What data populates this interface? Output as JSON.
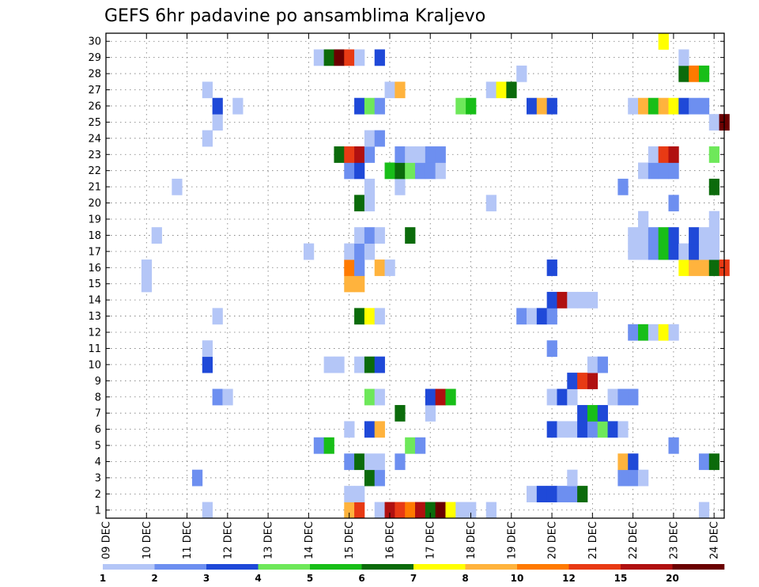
{
  "chart_data": {
    "type": "heatmap",
    "title": "GEFS 6hr padavine po ansamblima Kraljevo",
    "xlabel": "",
    "ylabel": "",
    "x_tick_labels": [
      "09 DEC",
      "10 DEC",
      "11 DEC",
      "12 DEC",
      "13 DEC",
      "14 DEC",
      "15 DEC",
      "16 DEC",
      "17 DEC",
      "18 DEC",
      "19 DEC",
      "20 DEC",
      "21 DEC",
      "22 DEC",
      "23 DEC",
      "24 DEC"
    ],
    "xlim": [
      0,
      61
    ],
    "x_unit": "6-hour step from 09 DEC 00Z",
    "y_tick_labels": [
      "1",
      "2",
      "3",
      "4",
      "5",
      "6",
      "7",
      "8",
      "9",
      "10",
      "11",
      "12",
      "13",
      "14",
      "15",
      "16",
      "17",
      "18",
      "19",
      "20",
      "21",
      "22",
      "23",
      "24",
      "25",
      "26",
      "27",
      "28",
      "29",
      "30"
    ],
    "ylim": [
      0.5,
      30.5
    ],
    "grid": true,
    "colorbar": {
      "labels": [
        "1",
        "2",
        "3",
        "4",
        "5",
        "6",
        "7",
        "8",
        "10",
        "12",
        "15",
        "20"
      ],
      "colors": [
        "#b4c6f7",
        "#6d8ff0",
        "#1f49d8",
        "#6ee85a",
        "#18be18",
        "#0b6b0b",
        "#ffff00",
        "#ffb33d",
        "#ff7a00",
        "#e83a14",
        "#b01010",
        "#6b0000"
      ]
    },
    "cells": [
      [
        10,
        1,
        1
      ],
      [
        24,
        1,
        8
      ],
      [
        25,
        1,
        10
      ],
      [
        27,
        1,
        1
      ],
      [
        28,
        1,
        11
      ],
      [
        29,
        1,
        10
      ],
      [
        30,
        1,
        9
      ],
      [
        31,
        1,
        11
      ],
      [
        32,
        1,
        6
      ],
      [
        33,
        1,
        12
      ],
      [
        34,
        1,
        7
      ],
      [
        35,
        1,
        1
      ],
      [
        36,
        1,
        1
      ],
      [
        38,
        1,
        1
      ],
      [
        59,
        1,
        1
      ],
      [
        24,
        2,
        1
      ],
      [
        25,
        2,
        1
      ],
      [
        42,
        2,
        1
      ],
      [
        43,
        2,
        3
      ],
      [
        44,
        2,
        3
      ],
      [
        45,
        2,
        2
      ],
      [
        46,
        2,
        2
      ],
      [
        47,
        2,
        6
      ],
      [
        9,
        3,
        2
      ],
      [
        26,
        3,
        6
      ],
      [
        27,
        3,
        2
      ],
      [
        46,
        3,
        1
      ],
      [
        51,
        3,
        2
      ],
      [
        52,
        3,
        2
      ],
      [
        53,
        3,
        1
      ],
      [
        24,
        4,
        2
      ],
      [
        25,
        4,
        6
      ],
      [
        26,
        4,
        1
      ],
      [
        27,
        4,
        1
      ],
      [
        29,
        4,
        2
      ],
      [
        51,
        4,
        8
      ],
      [
        52,
        4,
        3
      ],
      [
        59,
        4,
        2
      ],
      [
        60,
        4,
        6
      ],
      [
        21,
        5,
        2
      ],
      [
        22,
        5,
        5
      ],
      [
        30,
        5,
        4
      ],
      [
        31,
        5,
        2
      ],
      [
        56,
        5,
        2
      ],
      [
        24,
        6,
        1
      ],
      [
        26,
        6,
        3
      ],
      [
        27,
        6,
        8
      ],
      [
        44,
        6,
        3
      ],
      [
        45,
        6,
        1
      ],
      [
        46,
        6,
        1
      ],
      [
        47,
        6,
        3
      ],
      [
        48,
        6,
        2
      ],
      [
        49,
        6,
        4
      ],
      [
        50,
        6,
        3
      ],
      [
        51,
        6,
        1
      ],
      [
        29,
        7,
        6
      ],
      [
        32,
        7,
        1
      ],
      [
        47,
        7,
        3
      ],
      [
        48,
        7,
        5
      ],
      [
        49,
        7,
        3
      ],
      [
        11,
        8,
        2
      ],
      [
        12,
        8,
        1
      ],
      [
        26,
        8,
        4
      ],
      [
        27,
        8,
        1
      ],
      [
        32,
        8,
        3
      ],
      [
        33,
        8,
        11
      ],
      [
        34,
        8,
        5
      ],
      [
        44,
        8,
        1
      ],
      [
        45,
        8,
        3
      ],
      [
        46,
        8,
        1
      ],
      [
        50,
        8,
        1
      ],
      [
        51,
        8,
        2
      ],
      [
        52,
        8,
        2
      ],
      [
        46,
        9,
        3
      ],
      [
        47,
        9,
        10
      ],
      [
        48,
        9,
        11
      ],
      [
        10,
        10,
        3
      ],
      [
        22,
        10,
        1
      ],
      [
        23,
        10,
        1
      ],
      [
        25,
        10,
        1
      ],
      [
        26,
        10,
        6
      ],
      [
        27,
        10,
        3
      ],
      [
        48,
        10,
        1
      ],
      [
        49,
        10,
        2
      ],
      [
        10,
        11,
        1
      ],
      [
        44,
        11,
        2
      ],
      [
        52,
        12,
        2
      ],
      [
        53,
        12,
        5
      ],
      [
        54,
        12,
        1
      ],
      [
        55,
        12,
        7
      ],
      [
        56,
        12,
        1
      ],
      [
        11,
        13,
        1
      ],
      [
        25,
        13,
        6
      ],
      [
        26,
        13,
        7
      ],
      [
        27,
        13,
        1
      ],
      [
        41,
        13,
        2
      ],
      [
        42,
        13,
        1
      ],
      [
        43,
        13,
        3
      ],
      [
        44,
        13,
        2
      ],
      [
        44,
        14,
        3
      ],
      [
        45,
        14,
        11
      ],
      [
        46,
        14,
        1
      ],
      [
        47,
        14,
        1
      ],
      [
        48,
        14,
        1
      ],
      [
        4,
        15,
        1
      ],
      [
        24,
        15,
        8
      ],
      [
        25,
        15,
        8
      ],
      [
        4,
        16,
        1
      ],
      [
        24,
        16,
        9
      ],
      [
        25,
        16,
        2
      ],
      [
        27,
        16,
        8
      ],
      [
        28,
        16,
        1
      ],
      [
        44,
        16,
        3
      ],
      [
        57,
        16,
        7
      ],
      [
        58,
        16,
        8
      ],
      [
        59,
        16,
        8
      ],
      [
        60,
        16,
        6
      ],
      [
        61,
        16,
        10
      ],
      [
        20,
        17,
        1
      ],
      [
        24,
        17,
        1
      ],
      [
        25,
        17,
        2
      ],
      [
        26,
        17,
        1
      ],
      [
        52,
        17,
        1
      ],
      [
        53,
        17,
        1
      ],
      [
        54,
        17,
        2
      ],
      [
        55,
        17,
        5
      ],
      [
        56,
        17,
        3
      ],
      [
        57,
        17,
        1
      ],
      [
        58,
        17,
        3
      ],
      [
        59,
        17,
        1
      ],
      [
        60,
        17,
        1
      ],
      [
        5,
        18,
        1
      ],
      [
        25,
        18,
        1
      ],
      [
        26,
        18,
        2
      ],
      [
        27,
        18,
        1
      ],
      [
        30,
        18,
        6
      ],
      [
        52,
        18,
        1
      ],
      [
        53,
        18,
        1
      ],
      [
        54,
        18,
        2
      ],
      [
        55,
        18,
        5
      ],
      [
        56,
        18,
        3
      ],
      [
        58,
        18,
        3
      ],
      [
        59,
        18,
        1
      ],
      [
        60,
        18,
        1
      ],
      [
        53,
        19,
        1
      ],
      [
        60,
        19,
        1
      ],
      [
        25,
        20,
        6
      ],
      [
        26,
        20,
        1
      ],
      [
        38,
        20,
        1
      ],
      [
        56,
        20,
        2
      ],
      [
        7,
        21,
        1
      ],
      [
        26,
        21,
        1
      ],
      [
        29,
        21,
        1
      ],
      [
        51,
        21,
        2
      ],
      [
        60,
        21,
        6
      ],
      [
        24,
        22,
        2
      ],
      [
        25,
        22,
        3
      ],
      [
        28,
        22,
        5
      ],
      [
        29,
        22,
        6
      ],
      [
        30,
        22,
        4
      ],
      [
        31,
        22,
        2
      ],
      [
        32,
        22,
        2
      ],
      [
        33,
        22,
        1
      ],
      [
        53,
        22,
        1
      ],
      [
        54,
        22,
        2
      ],
      [
        55,
        22,
        2
      ],
      [
        56,
        22,
        2
      ],
      [
        23,
        23,
        6
      ],
      [
        24,
        23,
        10
      ],
      [
        25,
        23,
        11
      ],
      [
        26,
        23,
        2
      ],
      [
        29,
        23,
        2
      ],
      [
        30,
        23,
        1
      ],
      [
        31,
        23,
        1
      ],
      [
        32,
        23,
        2
      ],
      [
        33,
        23,
        2
      ],
      [
        54,
        23,
        1
      ],
      [
        55,
        23,
        10
      ],
      [
        56,
        23,
        11
      ],
      [
        60,
        23,
        4
      ],
      [
        10,
        24,
        1
      ],
      [
        26,
        24,
        1
      ],
      [
        27,
        24,
        2
      ],
      [
        11,
        25,
        1
      ],
      [
        60,
        25,
        1
      ],
      [
        61,
        25,
        12
      ],
      [
        11,
        26,
        3
      ],
      [
        13,
        26,
        1
      ],
      [
        25,
        26,
        3
      ],
      [
        26,
        26,
        4
      ],
      [
        27,
        26,
        2
      ],
      [
        35,
        26,
        4
      ],
      [
        36,
        26,
        5
      ],
      [
        42,
        26,
        3
      ],
      [
        43,
        26,
        8
      ],
      [
        44,
        26,
        3
      ],
      [
        52,
        26,
        1
      ],
      [
        53,
        26,
        8
      ],
      [
        54,
        26,
        5
      ],
      [
        55,
        26,
        8
      ],
      [
        56,
        26,
        7
      ],
      [
        57,
        26,
        3
      ],
      [
        58,
        26,
        2
      ],
      [
        59,
        26,
        2
      ],
      [
        10,
        27,
        1
      ],
      [
        28,
        27,
        1
      ],
      [
        29,
        27,
        8
      ],
      [
        38,
        27,
        1
      ],
      [
        39,
        27,
        7
      ],
      [
        40,
        27,
        6
      ],
      [
        41,
        28,
        1
      ],
      [
        57,
        28,
        6
      ],
      [
        58,
        28,
        9
      ],
      [
        59,
        28,
        5
      ],
      [
        21,
        29,
        1
      ],
      [
        22,
        29,
        6
      ],
      [
        23,
        29,
        12
      ],
      [
        24,
        29,
        10
      ],
      [
        25,
        29,
        1
      ],
      [
        27,
        29,
        3
      ],
      [
        57,
        29,
        1
      ],
      [
        55,
        30,
        7
      ]
    ]
  }
}
